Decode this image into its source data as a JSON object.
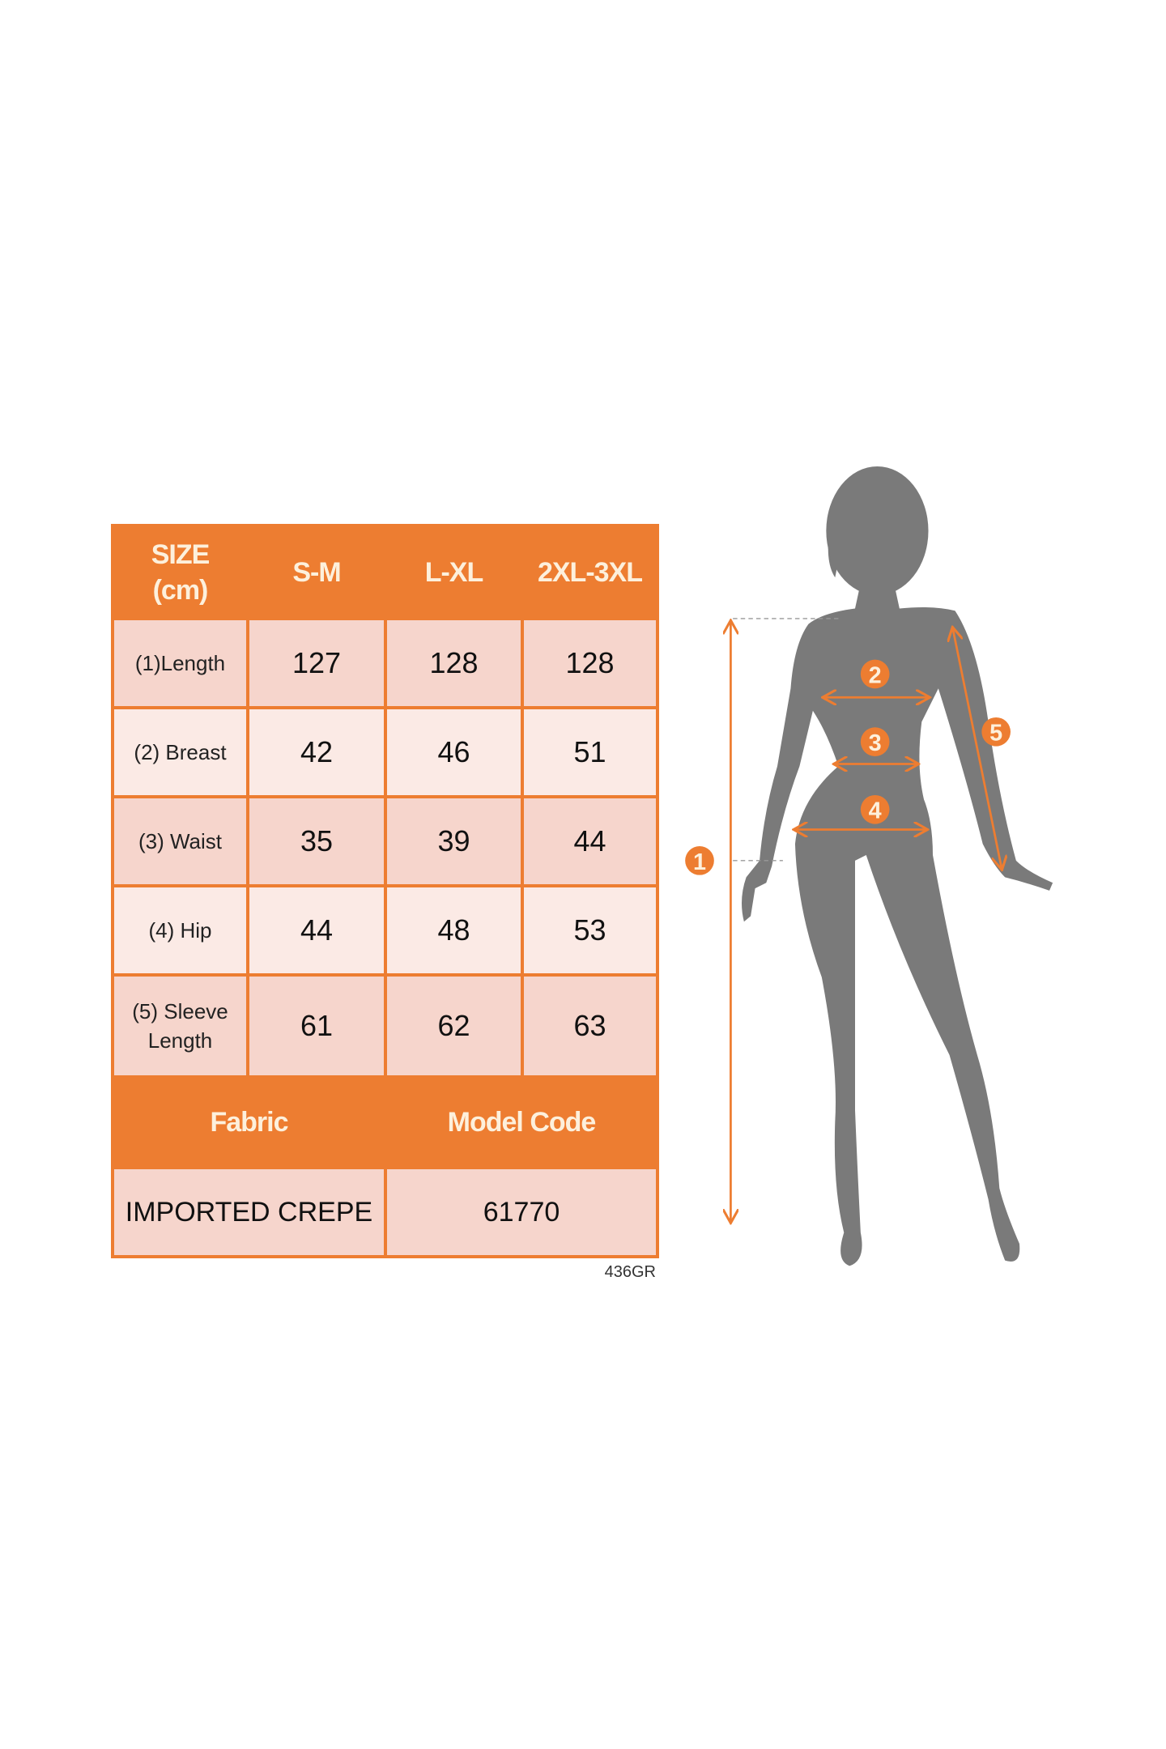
{
  "table": {
    "header": [
      "SIZE\n(cm)",
      "S-M",
      "L-XL",
      "2XL-3XL"
    ],
    "header_size_line1": "SIZE",
    "header_size_line2": "(cm)",
    "sizes": [
      "S-M",
      "L-XL",
      "2XL-3XL"
    ],
    "rows": [
      {
        "label": "(1)Length",
        "values": [
          "127",
          "128",
          "128"
        ]
      },
      {
        "label": "(2) Breast",
        "values": [
          "42",
          "46",
          "51"
        ]
      },
      {
        "label": "(3) Waist",
        "values": [
          "35",
          "39",
          "44"
        ]
      },
      {
        "label": "(4) Hip",
        "values": [
          "44",
          "48",
          "53"
        ]
      },
      {
        "label_line1": "(5) Sleeve",
        "label_line2": "Length",
        "values": [
          "61",
          "62",
          "63"
        ]
      }
    ],
    "footer": {
      "fabric_label": "Fabric",
      "model_code_label": "Model Code",
      "fabric": "IMPORTED CREPE",
      "model_code": "61770"
    }
  },
  "code": "436GR",
  "figure": {
    "markers": [
      "1",
      "2",
      "3",
      "4",
      "5"
    ],
    "accent_color": "#ED7D31",
    "silhouette_color": "#7A7A7A"
  }
}
